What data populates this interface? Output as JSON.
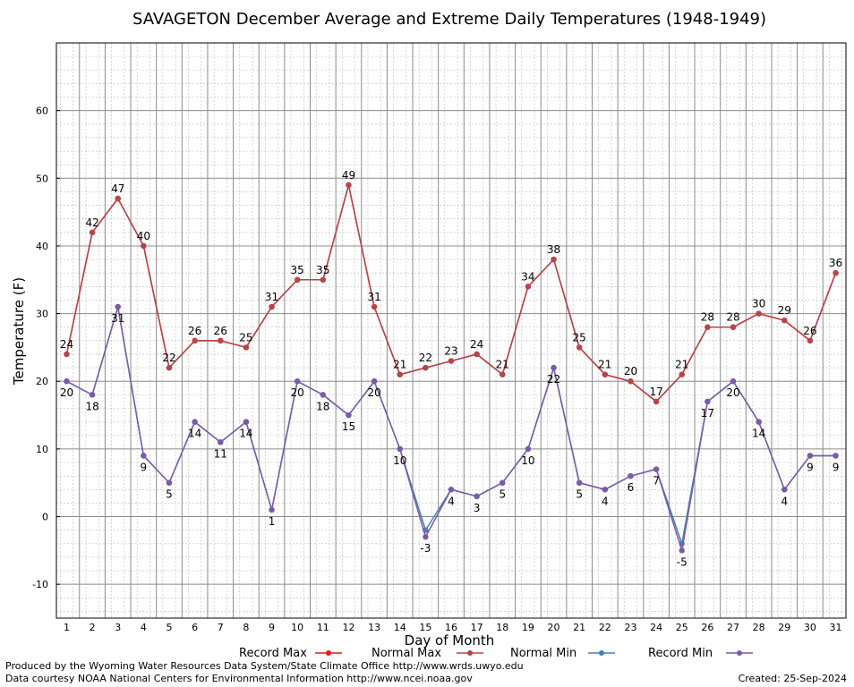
{
  "chart_data": {
    "type": "line",
    "title": "SAVAGETON December Average and Extreme Daily Temperatures (1948-1949)",
    "xlabel": "Day of Month",
    "ylabel": "Temperature (F)",
    "x": [
      1,
      2,
      3,
      4,
      5,
      6,
      7,
      8,
      9,
      10,
      11,
      12,
      13,
      14,
      15,
      16,
      17,
      18,
      19,
      20,
      21,
      22,
      23,
      24,
      25,
      26,
      27,
      28,
      29,
      30,
      31
    ],
    "xlim": [
      0.6,
      31.4
    ],
    "ylim": [
      -15,
      70
    ],
    "yticks": [
      -10,
      0,
      10,
      20,
      30,
      40,
      50,
      60
    ],
    "grid": true,
    "legend_position": "bottom",
    "series": [
      {
        "name": "Record Max",
        "color": "#e41a1c",
        "values": [
          24,
          42,
          47,
          40,
          22,
          26,
          26,
          25,
          31,
          35,
          35,
          49,
          31,
          21,
          22,
          23,
          24,
          21,
          34,
          38,
          25,
          21,
          20,
          17,
          21,
          28,
          28,
          30,
          29,
          26,
          36
        ]
      },
      {
        "name": "Normal Max",
        "color": "#b5464a",
        "values": [
          24,
          42,
          47,
          40,
          22,
          26,
          26,
          25,
          31,
          35,
          35,
          49,
          31,
          21,
          22,
          23,
          24,
          21,
          34,
          38,
          25,
          21,
          20,
          17,
          21,
          28,
          28,
          30,
          29,
          26,
          36
        ]
      },
      {
        "name": "Normal Min",
        "color": "#4682b4",
        "values": [
          20,
          18,
          31,
          9,
          5,
          14,
          11,
          14,
          1,
          20,
          18,
          15,
          20,
          10,
          -2,
          4,
          3,
          5,
          10,
          22,
          5,
          4,
          6,
          7,
          -4,
          17,
          20,
          14,
          4,
          9,
          9
        ]
      },
      {
        "name": "Record Min",
        "color": "#7b5aa6",
        "values": [
          20,
          18,
          31,
          9,
          5,
          14,
          11,
          14,
          1,
          20,
          18,
          15,
          20,
          10,
          -3,
          4,
          3,
          5,
          10,
          22,
          5,
          4,
          6,
          7,
          -5,
          17,
          20,
          14,
          4,
          9,
          9
        ]
      }
    ],
    "point_labels_max": [
      24,
      42,
      47,
      40,
      22,
      26,
      26,
      25,
      31,
      35,
      35,
      49,
      31,
      21,
      22,
      23,
      24,
      21,
      34,
      38,
      25,
      21,
      20,
      17,
      21,
      28,
      28,
      30,
      29,
      26,
      36
    ],
    "point_labels_min": [
      20,
      18,
      31,
      9,
      5,
      14,
      11,
      14,
      1,
      20,
      18,
      15,
      20,
      10,
      -3,
      4,
      3,
      5,
      10,
      22,
      5,
      4,
      6,
      7,
      -5,
      17,
      20,
      14,
      4,
      9,
      9
    ]
  },
  "footer": {
    "line1": "Produced by the Wyoming Water Resources Data System/State Climate Office http://www.wrds.uwyo.edu",
    "line2": "Data courtesy NOAA National Centers for Environmental Information http://www.ncei.noaa.gov",
    "created": "Created:  25-Sep-2024"
  }
}
